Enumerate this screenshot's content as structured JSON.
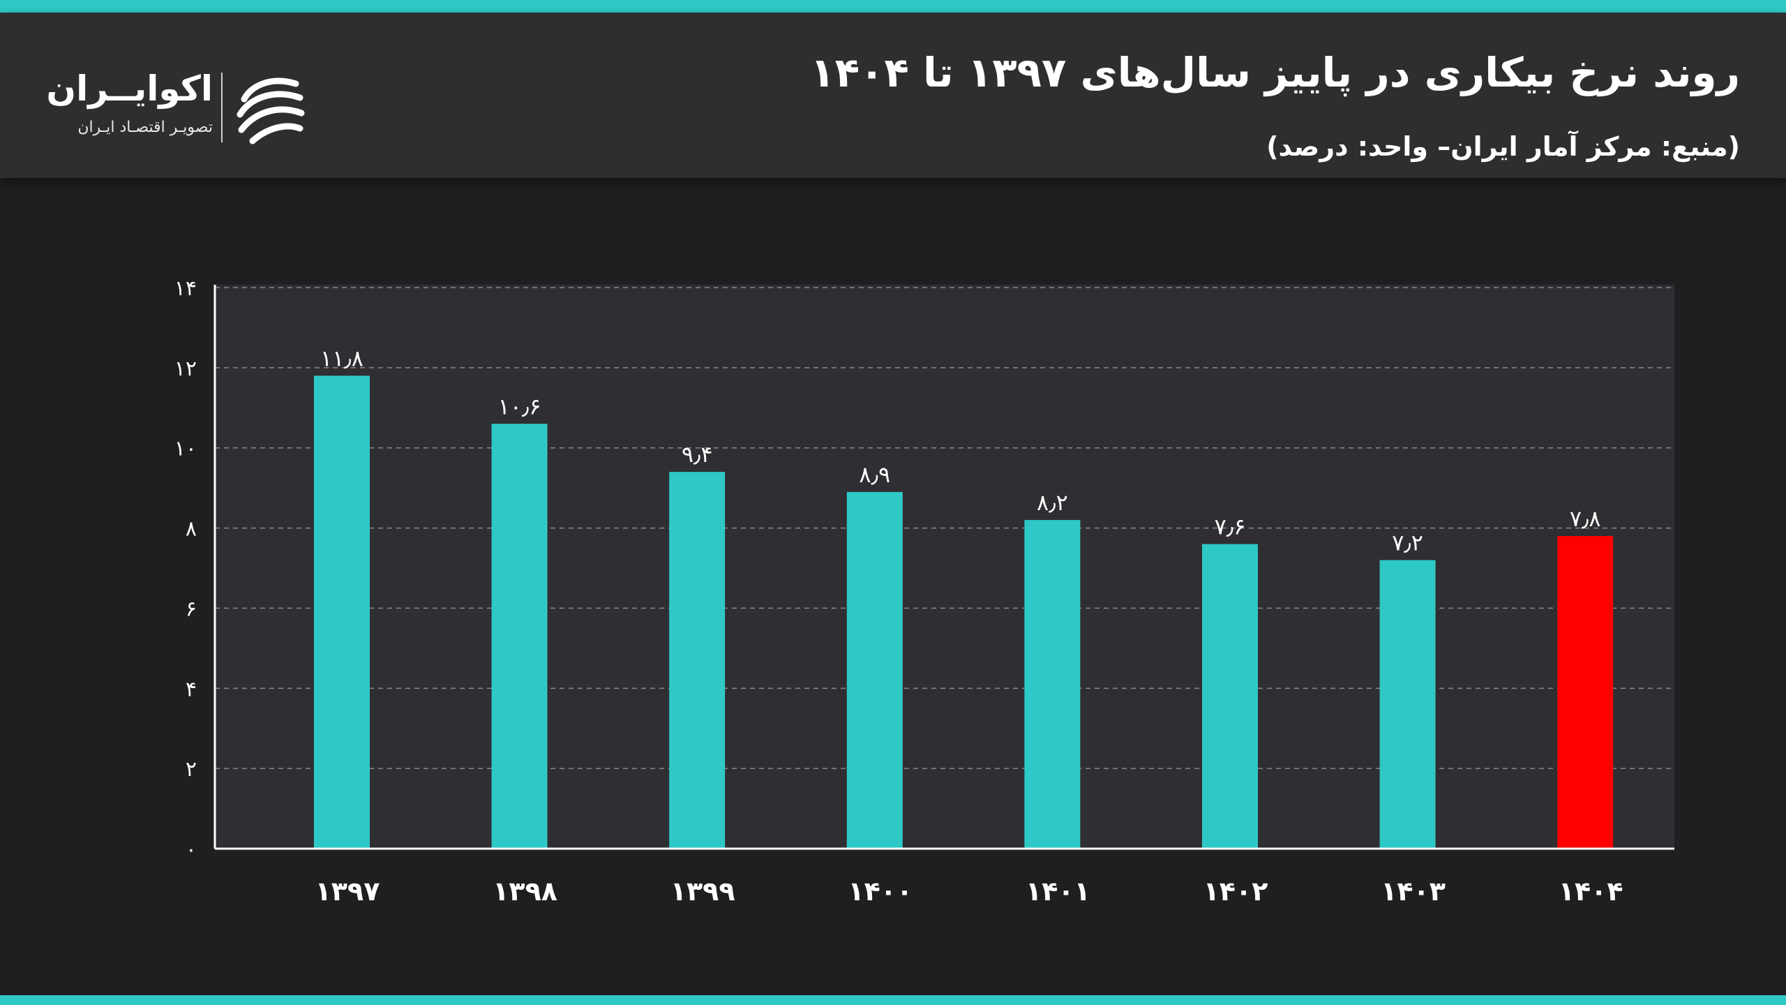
{
  "header": {
    "title": "روند نرخ بیکاری در پاییز سال‌های ۱۳۹۷ تا ۱۴۰۴",
    "subtitle": "(منبع: مرکز آمار ایران– واحد: درصد)"
  },
  "logo": {
    "name": "اکوایــران",
    "tagline": "تصویـر اقتصـاد ایـران",
    "icon": "ecoiran-swirl-logo"
  },
  "colors": {
    "accent": "#2ec9c7",
    "highlight": "#ff0000",
    "background": "#1f1e20",
    "plot_background": "#2f2e32",
    "header_background": "#2f2d30"
  },
  "chart_data": {
    "type": "bar",
    "categories": [
      "۱۳۹۷",
      "۱۳۹۸",
      "۱۳۹۹",
      "۱۴۰۰",
      "۱۴۰۱",
      "۱۴۰۲",
      "۱۴۰۳",
      "۱۴۰۴"
    ],
    "values": [
      11.8,
      10.6,
      9.4,
      8.9,
      8.2,
      7.6,
      7.2,
      7.8
    ],
    "value_labels": [
      "۱۱٫۸",
      "۱۰٫۶",
      "۹٫۴",
      "۸٫۹",
      "۸٫۲",
      "۷٫۶",
      "۷٫۲",
      "۷٫۸"
    ],
    "bar_colors": [
      "#2ec9c7",
      "#2ec9c7",
      "#2ec9c7",
      "#2ec9c7",
      "#2ec9c7",
      "#2ec9c7",
      "#2ec9c7",
      "#ff0000"
    ],
    "ylim": [
      0,
      14
    ],
    "yticks": [
      0,
      2,
      4,
      6,
      8,
      10,
      12,
      14
    ],
    "ytick_labels": [
      "۰",
      "۲",
      "۴",
      "۶",
      "۸",
      "۱۰",
      "۱۲",
      "۱۴"
    ],
    "grid": true,
    "legend": "none"
  }
}
